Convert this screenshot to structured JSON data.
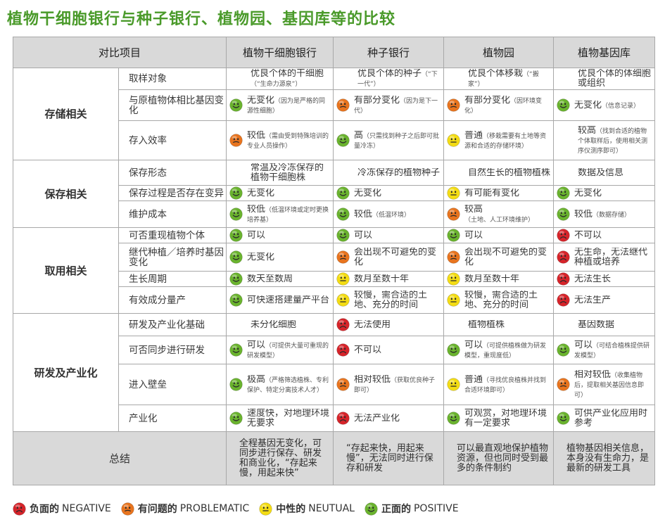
{
  "title": "植物干细胞银行与种子银行、植物园、基因库等的比较",
  "header": {
    "item": "对比项目",
    "cols": [
      "植物干细胞银行",
      "种子银行",
      "植物园",
      "植物基因库"
    ]
  },
  "groups": [
    {
      "label": "存储相关",
      "rows": [
        {
          "item": "取样对象",
          "cells": [
            {
              "icon": "",
              "main": "优良个体的干细胞",
              "sub": "（“生命力源泉”）"
            },
            {
              "icon": "",
              "main": "优良个体的种子",
              "sub": "（“下一代”）"
            },
            {
              "icon": "",
              "main": "优良个体移栽",
              "sub": "（“搬家”）"
            },
            {
              "icon": "",
              "main": "优良个体的体细胞或组织",
              "sub": ""
            }
          ]
        },
        {
          "item": "与原植物体相比基因变化",
          "cells": [
            {
              "icon": "positive",
              "main": "无变化",
              "sub": "（因为是严格的同源性细胞）"
            },
            {
              "icon": "problematic",
              "main": "有部分变化",
              "sub": "（因为是下一代）"
            },
            {
              "icon": "problematic",
              "main": "有部分变化",
              "sub": "（因环境变化）"
            },
            {
              "icon": "positive",
              "main": "无变化",
              "sub": "（信息记录）"
            }
          ]
        },
        {
          "item": "存入效率",
          "cells": [
            {
              "icon": "problematic",
              "main": "较低",
              "sub": "（需由受到特殊培训的专业人员操作）"
            },
            {
              "icon": "positive",
              "main": "高",
              "sub": "（只需找到种子之后即可批量冷冻）"
            },
            {
              "icon": "neutral",
              "main": "普通",
              "sub": "（移栽需要有土地等资源和合适的存储环境）"
            },
            {
              "icon": "",
              "main": "较高",
              "sub": "（找到合适的植物个体取样后，使用相关测序仪测序即可）"
            }
          ]
        }
      ]
    },
    {
      "label": "保存相关",
      "rows": [
        {
          "item": "保存形态",
          "cells": [
            {
              "icon": "",
              "main": "常温及冷冻保存的植物干细胞株",
              "sub": ""
            },
            {
              "icon": "",
              "main": "冷冻保存的植物种子",
              "sub": ""
            },
            {
              "icon": "",
              "main": "自然生长的植物植株",
              "sub": ""
            },
            {
              "icon": "",
              "main": "数据及信息",
              "sub": ""
            }
          ]
        },
        {
          "item": "保存过程是否存在变异",
          "cells": [
            {
              "icon": "positive",
              "main": "无变化",
              "sub": ""
            },
            {
              "icon": "positive",
              "main": "无变化",
              "sub": ""
            },
            {
              "icon": "neutral",
              "main": "有可能有变化",
              "sub": ""
            },
            {
              "icon": "positive",
              "main": "无变化",
              "sub": ""
            }
          ]
        },
        {
          "item": "维护成本",
          "cells": [
            {
              "icon": "positive",
              "main": "较低",
              "sub": "（低温环境或定时更换培养基）"
            },
            {
              "icon": "positive",
              "main": "较低",
              "sub": "（低温环境）"
            },
            {
              "icon": "problematic",
              "main": "较高",
              "sub": "（土地、人工环境维护）"
            },
            {
              "icon": "positive",
              "main": "较低",
              "sub": "（数据存储）"
            }
          ]
        }
      ]
    },
    {
      "label": "取用相关",
      "rows": [
        {
          "item": "可否重现植物个体",
          "cells": [
            {
              "icon": "positive",
              "main": "可以",
              "sub": ""
            },
            {
              "icon": "positive",
              "main": "可以",
              "sub": ""
            },
            {
              "icon": "positive",
              "main": "可以",
              "sub": ""
            },
            {
              "icon": "negative",
              "main": "不可以",
              "sub": ""
            }
          ]
        },
        {
          "item": "继代种植／培养时基因变化",
          "cells": [
            {
              "icon": "positive",
              "main": "无变化",
              "sub": ""
            },
            {
              "icon": "problematic",
              "main": "会出现不可避免的变化",
              "sub": ""
            },
            {
              "icon": "problematic",
              "main": "会出现不可避免的变化",
              "sub": ""
            },
            {
              "icon": "negative",
              "main": "无生命，无法继代种植或培养",
              "sub": ""
            }
          ]
        },
        {
          "item": "生长周期",
          "cells": [
            {
              "icon": "positive",
              "main": "数天至数周",
              "sub": ""
            },
            {
              "icon": "neutral",
              "main": "数月至数十年",
              "sub": ""
            },
            {
              "icon": "neutral",
              "main": "数月至数十年",
              "sub": ""
            },
            {
              "icon": "negative",
              "main": "无法生长",
              "sub": ""
            }
          ]
        },
        {
          "item": "有效成分量产",
          "cells": [
            {
              "icon": "positive",
              "main": "可快速搭建量产平台",
              "sub": ""
            },
            {
              "icon": "neutral",
              "main": "较慢，需合适的土地、充分的时间",
              "sub": ""
            },
            {
              "icon": "neutral",
              "main": "较慢，需合适的土地、充分的时间",
              "sub": ""
            },
            {
              "icon": "negative",
              "main": "无法生产",
              "sub": ""
            }
          ]
        }
      ]
    },
    {
      "label": "研发及产业化",
      "rows": [
        {
          "item": "研发及产业化基础",
          "cells": [
            {
              "icon": "",
              "main": "未分化细胞",
              "sub": ""
            },
            {
              "icon": "negative",
              "main": "无法使用",
              "sub": ""
            },
            {
              "icon": "",
              "main": "植物植株",
              "sub": ""
            },
            {
              "icon": "",
              "main": "基因数据",
              "sub": ""
            }
          ]
        },
        {
          "item": "可否同步进行研发",
          "cells": [
            {
              "icon": "positive",
              "main": "可以",
              "sub": "（可提供大量可重现的研发模型）"
            },
            {
              "icon": "negative",
              "main": "不可以",
              "sub": ""
            },
            {
              "icon": "positive",
              "main": "可以",
              "sub": "（可提供植株做为研发模型，重现度低）"
            },
            {
              "icon": "positive",
              "main": "可以",
              "sub": "（可结合植株提供研发模型）"
            }
          ]
        },
        {
          "item": "进入壁垒",
          "cells": [
            {
              "icon": "positive",
              "main": "极高",
              "sub": "（严格筛选植株、专利保护、特定分离技术人才）"
            },
            {
              "icon": "problematic",
              "main": "相对较低",
              "sub": "（获取优良种子即可）"
            },
            {
              "icon": "neutral",
              "main": "普通",
              "sub": "（寻找优良植株并找到合适环境即可）"
            },
            {
              "icon": "problematic",
              "main": "相对较低",
              "sub": "（收集植物后，提取相关基因信息即可）"
            }
          ]
        },
        {
          "item": "产业化",
          "cells": [
            {
              "icon": "positive",
              "main": "速度快，对地理环境无要求",
              "sub": ""
            },
            {
              "icon": "negative",
              "main": "无法产业化",
              "sub": ""
            },
            {
              "icon": "positive",
              "main": "可观赏，对地理环境有一定要求",
              "sub": ""
            },
            {
              "icon": "positive",
              "main": "可供产业化应用时参考",
              "sub": ""
            }
          ]
        }
      ]
    }
  ],
  "summary": {
    "label": "总结",
    "cells": [
      "全程基因无变化，可同步进行保存、研发和商业化，“存起来慢，用起来快”",
      "“存起来快，用起来慢”，无法同时进行保存和研发",
      "可以最直观地保护植物资源，但也同时受到最多的条件制约",
      "植物基因相关信息，本身没有生命力，是最新的研发工具"
    ]
  },
  "legend": [
    {
      "icon": "negative",
      "cn": "负面的",
      "en": "NEGATIVE"
    },
    {
      "icon": "problematic",
      "cn": "有问题的",
      "en": "PROBLEMATIC"
    },
    {
      "icon": "neutral",
      "cn": "中性的",
      "en": "NEUTUAL"
    },
    {
      "icon": "positive",
      "cn": "正面的",
      "en": "POSITIVE"
    }
  ],
  "colors": {
    "negative": "#d6242a",
    "problematic": "#e8741e",
    "neutral": "#f3dc14",
    "positive": "#6ab32e",
    "title": "#4a9a2a",
    "header_bg": "#d9d9d9"
  }
}
